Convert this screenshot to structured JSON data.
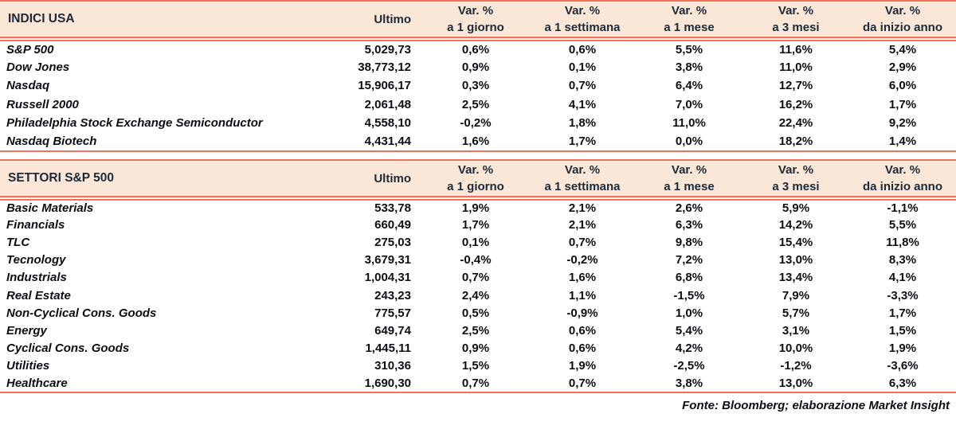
{
  "colors": {
    "accent": "#F0705A",
    "header_bg": "#FBE7D7",
    "header_text": "#1B2A38",
    "text": "#0B0F14"
  },
  "tables": [
    {
      "title": "INDICI USA",
      "ultimo_label": "Ultimo",
      "var_columns": [
        {
          "line1": "Var. %",
          "line2": "a 1 giorno"
        },
        {
          "line1": "Var. %",
          "line2": "a 1 settimana"
        },
        {
          "line1": "Var. %",
          "line2": "a 1 mese"
        },
        {
          "line1": "Var. %",
          "line2": "a 3 mesi"
        },
        {
          "line1": "Var. %",
          "line2": "da inizio anno"
        }
      ],
      "rows": [
        {
          "name": "S&P 500",
          "ultimo": "5,029,73",
          "values": [
            "0,6%",
            "0,6%",
            "5,5%",
            "11,6%",
            "5,4%"
          ]
        },
        {
          "name": "Dow Jones",
          "ultimo": "38,773,12",
          "values": [
            "0,9%",
            "0,1%",
            "3,8%",
            "11,0%",
            "2,9%"
          ]
        },
        {
          "name": "Nasdaq",
          "ultimo": "15,906,17",
          "values": [
            "0,3%",
            "0,7%",
            "6,4%",
            "12,7%",
            "6,0%"
          ]
        },
        {
          "name": "Russell 2000",
          "ultimo": "2,061,48",
          "values": [
            "2,5%",
            "4,1%",
            "7,0%",
            "16,2%",
            "1,7%"
          ]
        },
        {
          "name": "Philadelphia Stock Exchange Semiconductor",
          "ultimo": "4,558,10",
          "values": [
            "-0,2%",
            "1,8%",
            "11,0%",
            "22,4%",
            "9,2%"
          ]
        },
        {
          "name": "Nasdaq Biotech",
          "ultimo": "4,431,44",
          "values": [
            "1,6%",
            "1,7%",
            "0,0%",
            "18,2%",
            "1,4%"
          ]
        }
      ]
    },
    {
      "title": "SETTORI S&P 500",
      "ultimo_label": "Ultimo",
      "var_columns": [
        {
          "line1": "Var. %",
          "line2": "a 1 giorno"
        },
        {
          "line1": "Var. %",
          "line2": "a 1 settimana"
        },
        {
          "line1": "Var. %",
          "line2": "a 1 mese"
        },
        {
          "line1": "Var. %",
          "line2": "a 3 mesi"
        },
        {
          "line1": "Var. %",
          "line2": "da inizio anno"
        }
      ],
      "rows": [
        {
          "name": "Basic Materials",
          "ultimo": "533,78",
          "values": [
            "1,9%",
            "2,1%",
            "2,6%",
            "5,9%",
            "-1,1%"
          ]
        },
        {
          "name": "Financials",
          "ultimo": "660,49",
          "values": [
            "1,7%",
            "2,1%",
            "6,3%",
            "14,2%",
            "5,5%"
          ]
        },
        {
          "name": "TLC",
          "ultimo": "275,03",
          "values": [
            "0,1%",
            "0,7%",
            "9,8%",
            "15,4%",
            "11,8%"
          ]
        },
        {
          "name": "Tecnology",
          "ultimo": "3,679,31",
          "values": [
            "-0,4%",
            "-0,2%",
            "7,2%",
            "13,0%",
            "8,3%"
          ]
        },
        {
          "name": "Industrials",
          "ultimo": "1,004,31",
          "values": [
            "0,7%",
            "1,6%",
            "6,8%",
            "13,4%",
            "4,1%"
          ]
        },
        {
          "name": "Real Estate",
          "ultimo": "243,23",
          "values": [
            "2,4%",
            "1,1%",
            "-1,5%",
            "7,9%",
            "-3,3%"
          ]
        },
        {
          "name": "Non-Cyclical Cons. Goods",
          "ultimo": "775,57",
          "values": [
            "0,5%",
            "-0,9%",
            "1,0%",
            "5,7%",
            "1,7%"
          ]
        },
        {
          "name": "Energy",
          "ultimo": "649,74",
          "values": [
            "2,5%",
            "0,6%",
            "5,4%",
            "3,1%",
            "1,5%"
          ]
        },
        {
          "name": "Cyclical Cons. Goods",
          "ultimo": "1,445,11",
          "values": [
            "0,9%",
            "0,6%",
            "4,2%",
            "10,0%",
            "1,9%"
          ]
        },
        {
          "name": "Utilities",
          "ultimo": "310,36",
          "values": [
            "1,5%",
            "1,9%",
            "-2,5%",
            "-1,2%",
            "-3,6%"
          ]
        },
        {
          "name": "Healthcare",
          "ultimo": "1,690,30",
          "values": [
            "0,7%",
            "0,7%",
            "3,8%",
            "13,0%",
            "6,3%"
          ]
        }
      ]
    }
  ],
  "footer": {
    "text": "Fonte: Bloomberg; elaborazione Market Insight"
  }
}
